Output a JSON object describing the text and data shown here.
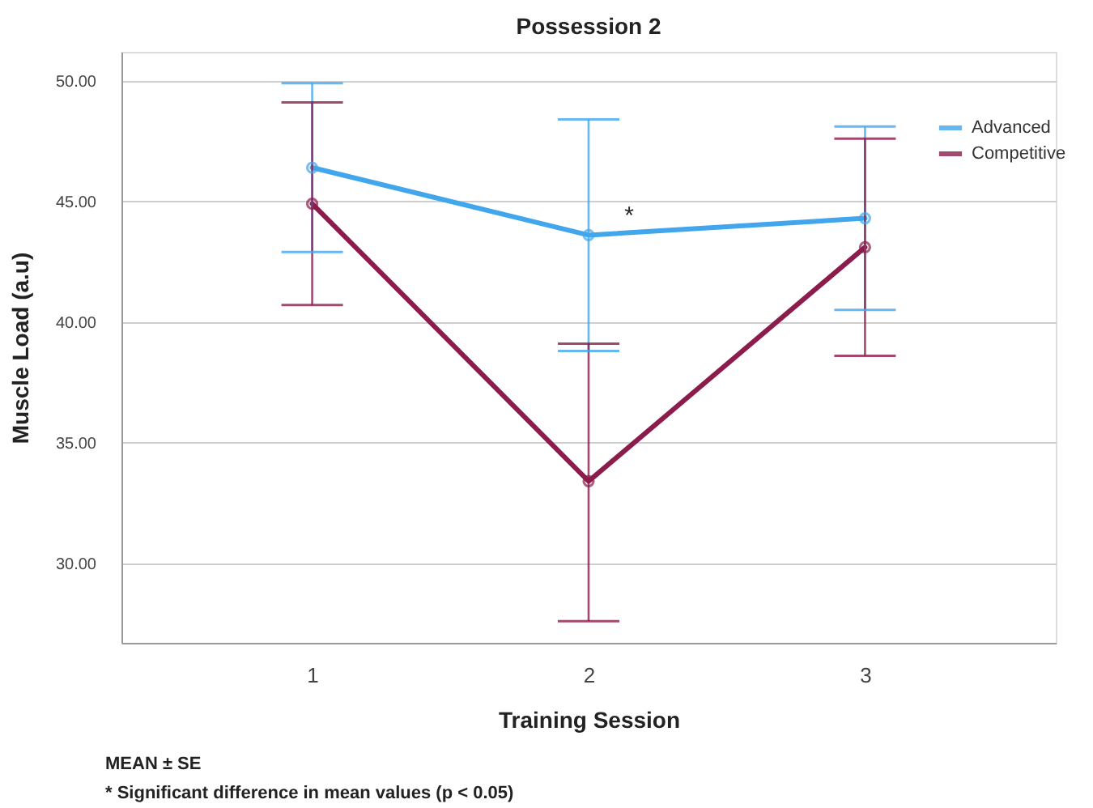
{
  "chart_data": {
    "type": "line",
    "title": "Possession 2",
    "xlabel": "Training Session",
    "ylabel": "Muscle Load (a.u)",
    "categories": [
      "1",
      "2",
      "3"
    ],
    "series": [
      {
        "name": "Advanced",
        "color": "#41a6ec",
        "values": [
          46.4,
          43.6,
          44.3
        ],
        "errors": [
          [
            42.9,
            49.9
          ],
          [
            38.8,
            48.4
          ],
          [
            40.5,
            48.1
          ]
        ]
      },
      {
        "name": "Competitive",
        "color": "#8c1c4c",
        "values": [
          44.9,
          33.4,
          43.1
        ],
        "errors": [
          [
            40.7,
            49.1
          ],
          [
            27.6,
            39.1
          ],
          [
            38.6,
            47.6
          ]
        ]
      }
    ],
    "ylim": [
      26.7,
      51.2
    ],
    "yticks": [
      {
        "value": 30,
        "label": "30.00"
      },
      {
        "value": 35,
        "label": "35.00"
      },
      {
        "value": 40,
        "label": "40.00"
      },
      {
        "value": 45,
        "label": "45.00"
      },
      {
        "value": 50,
        "label": "50.00"
      }
    ],
    "grid": "y",
    "legend": "top right",
    "marker": "circle",
    "line_style": "solid",
    "annotations": [
      {
        "text": "*",
        "x": "2",
        "y": 44.7
      },
      "MEAN ± SE",
      "* Significant difference in mean values (p < 0.05)"
    ]
  }
}
